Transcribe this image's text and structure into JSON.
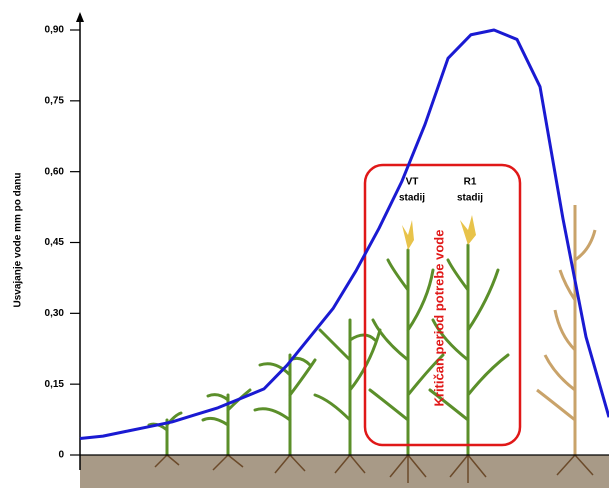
{
  "chart_data": {
    "type": "line",
    "y_label": "Usvajanje vode  mm po danu",
    "categories": [
      null,
      null,
      null,
      null,
      null,
      null,
      null,
      null,
      null,
      null,
      null,
      null,
      null,
      null,
      null,
      null,
      null,
      null,
      null,
      null,
      null,
      null,
      null,
      null
    ],
    "series": [
      {
        "color": "#1a1ad2",
        "values": [
          0.035,
          0.04,
          0.05,
          0.06,
          0.07,
          0.085,
          0.1,
          0.12,
          0.14,
          0.19,
          0.25,
          0.31,
          0.39,
          0.48,
          0.58,
          0.7,
          0.84,
          0.89,
          0.9,
          0.88,
          0.78,
          0.5,
          0.25,
          0.08
        ]
      }
    ],
    "ylim": [
      0,
      0.9
    ],
    "yticks": [
      0,
      {
        "value": 0.15,
        "label": "0,15"
      },
      {
        "value": 0.3,
        "label": "0,30"
      },
      {
        "value": 0.45,
        "label": "0,45"
      },
      {
        "value": 0.6,
        "label": "0,60"
      },
      {
        "value": 0.75,
        "label": "0,75"
      },
      {
        "value": 0.9,
        "label": "0,90"
      }
    ],
    "annotations": [
      "VT",
      "stadij",
      "R1",
      "stadij",
      "Kritičan period potrebe vode"
    ]
  }
}
